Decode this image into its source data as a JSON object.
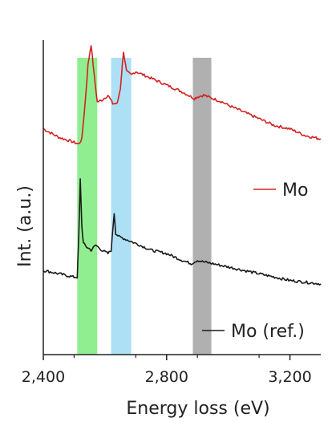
{
  "chart_data": {
    "type": "line",
    "title": "",
    "xlabel": "Energy loss (eV)",
    "ylabel": "Int. (a.u.)",
    "xlim": [
      2400,
      3300
    ],
    "ylim": [
      0,
      1
    ],
    "x_ticks": [
      2400,
      2800,
      3200
    ],
    "x_tick_labels": [
      "2,400",
      "2,800",
      "3,200"
    ],
    "y_ticks_shown": false,
    "grid": false,
    "legend_placement": "right",
    "highlight_bands": [
      {
        "x_start": 2510,
        "x_end": 2575,
        "color": "#90ee90"
      },
      {
        "x_start": 2620,
        "x_end": 2685,
        "color": "#aee0f5"
      },
      {
        "x_start": 2885,
        "x_end": 2945,
        "color": "#b0b0b0"
      }
    ],
    "series": [
      {
        "name": "Mo",
        "color": "#d42020",
        "x": [
          2400,
          2450,
          2500,
          2515,
          2525,
          2535,
          2545,
          2555,
          2565,
          2575,
          2590,
          2610,
          2625,
          2640,
          2650,
          2660,
          2670,
          2685,
          2700,
          2750,
          2800,
          2850,
          2870,
          2890,
          2900,
          2920,
          2950,
          2980,
          3000,
          3050,
          3100,
          3150,
          3200,
          3250,
          3300
        ],
        "y": [
          0.67,
          0.645,
          0.63,
          0.625,
          0.64,
          0.74,
          0.86,
          0.92,
          0.83,
          0.75,
          0.755,
          0.77,
          0.745,
          0.745,
          0.79,
          0.9,
          0.84,
          0.83,
          0.84,
          0.82,
          0.8,
          0.78,
          0.77,
          0.76,
          0.765,
          0.77,
          0.76,
          0.75,
          0.74,
          0.72,
          0.7,
          0.68,
          0.67,
          0.65,
          0.64
        ]
      },
      {
        "name": "Mo (ref.)",
        "color": "#1a1a1a",
        "x": [
          2400,
          2450,
          2500,
          2510,
          2515,
          2520,
          2525,
          2530,
          2540,
          2555,
          2570,
          2590,
          2610,
          2620,
          2630,
          2635,
          2645,
          2660,
          2700,
          2750,
          2800,
          2850,
          2880,
          2900,
          2920,
          2950,
          3000,
          3050,
          3100,
          3150,
          3200,
          3250,
          3300
        ],
        "y": [
          0.25,
          0.24,
          0.23,
          0.23,
          0.35,
          0.52,
          0.38,
          0.33,
          0.32,
          0.31,
          0.325,
          0.31,
          0.3,
          0.31,
          0.42,
          0.36,
          0.35,
          0.345,
          0.33,
          0.31,
          0.3,
          0.28,
          0.27,
          0.28,
          0.275,
          0.27,
          0.26,
          0.25,
          0.24,
          0.23,
          0.22,
          0.215,
          0.21
        ]
      }
    ]
  }
}
